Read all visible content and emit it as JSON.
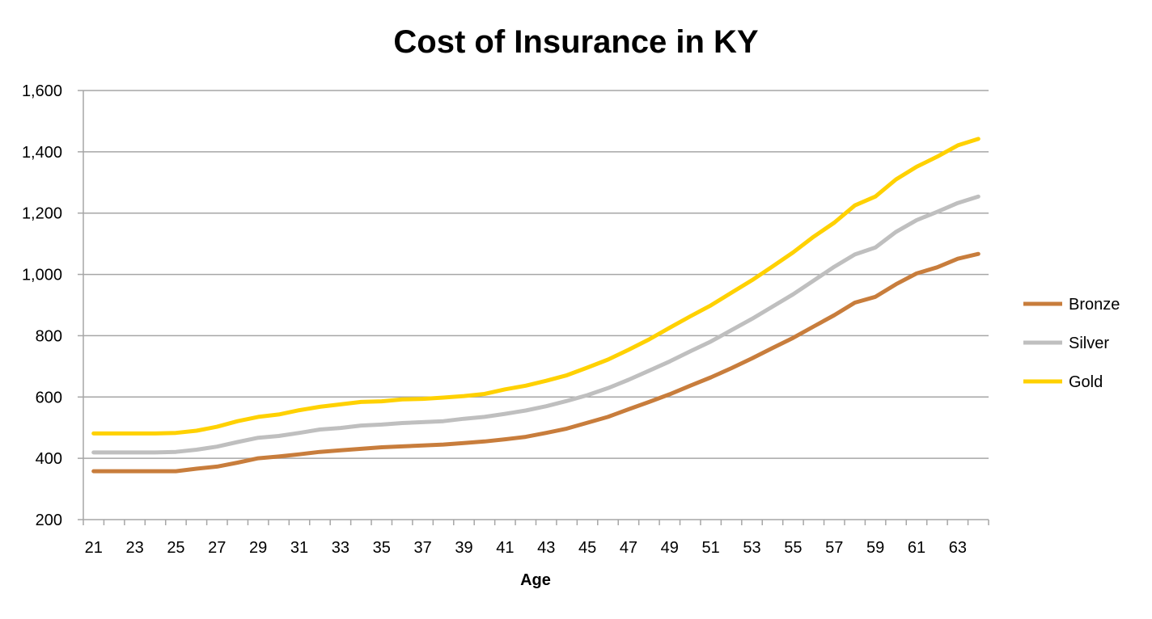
{
  "chart_data": {
    "type": "line",
    "title": "Cost of Insurance in KY",
    "xlabel": "Age",
    "ylabel": "",
    "ylim": [
      200,
      1600
    ],
    "yticks": [
      200,
      400,
      600,
      800,
      1000,
      1200,
      1400,
      1600
    ],
    "ytick_labels": [
      "200",
      "400",
      "600",
      "800",
      "1,000",
      "1,200",
      "1,400",
      "1,600"
    ],
    "xticks": [
      21,
      23,
      25,
      27,
      29,
      31,
      33,
      35,
      37,
      39,
      41,
      43,
      45,
      47,
      49,
      51,
      53,
      55,
      57,
      59,
      61,
      63
    ],
    "x": [
      21,
      22,
      23,
      24,
      25,
      26,
      27,
      28,
      29,
      30,
      31,
      32,
      33,
      34,
      35,
      36,
      37,
      38,
      39,
      40,
      41,
      42,
      43,
      44,
      45,
      46,
      47,
      48,
      49,
      50,
      51,
      52,
      53,
      54,
      55,
      56,
      57,
      58,
      59,
      60,
      61,
      62,
      63,
      64
    ],
    "grid": true,
    "legend_position": "right",
    "series": [
      {
        "name": "Bronze",
        "color": "#C87D3C",
        "values": [
          358,
          358,
          358,
          358,
          358,
          366,
          373,
          386,
          400,
          406,
          413,
          421,
          426,
          431,
          436,
          439,
          442,
          445,
          450,
          455,
          462,
          470,
          483,
          497,
          516,
          535,
          560,
          584,
          609,
          637,
          664,
          694,
          726,
          760,
          793,
          830,
          867,
          908,
          927,
          968,
          1003,
          1023,
          1051,
          1067
        ]
      },
      {
        "name": "Silver",
        "color": "#BFBFBF",
        "values": [
          419,
          419,
          419,
          419,
          421,
          428,
          438,
          453,
          467,
          473,
          483,
          494,
          499,
          507,
          510,
          515,
          518,
          521,
          529,
          535,
          545,
          556,
          570,
          587,
          606,
          629,
          656,
          686,
          716,
          749,
          781,
          818,
          855,
          895,
          935,
          980,
          1025,
          1065,
          1088,
          1139,
          1177,
          1204,
          1233,
          1254
        ]
      },
      {
        "name": "Gold",
        "color": "#FFD100",
        "values": [
          481,
          481,
          481,
          481,
          483,
          490,
          503,
          521,
          535,
          543,
          557,
          568,
          576,
          584,
          586,
          592,
          594,
          598,
          603,
          610,
          625,
          637,
          653,
          671,
          696,
          722,
          754,
          788,
          826,
          863,
          899,
          940,
          981,
          1026,
          1072,
          1123,
          1169,
          1225,
          1254,
          1310,
          1351,
          1384,
          1421,
          1442
        ]
      }
    ]
  }
}
